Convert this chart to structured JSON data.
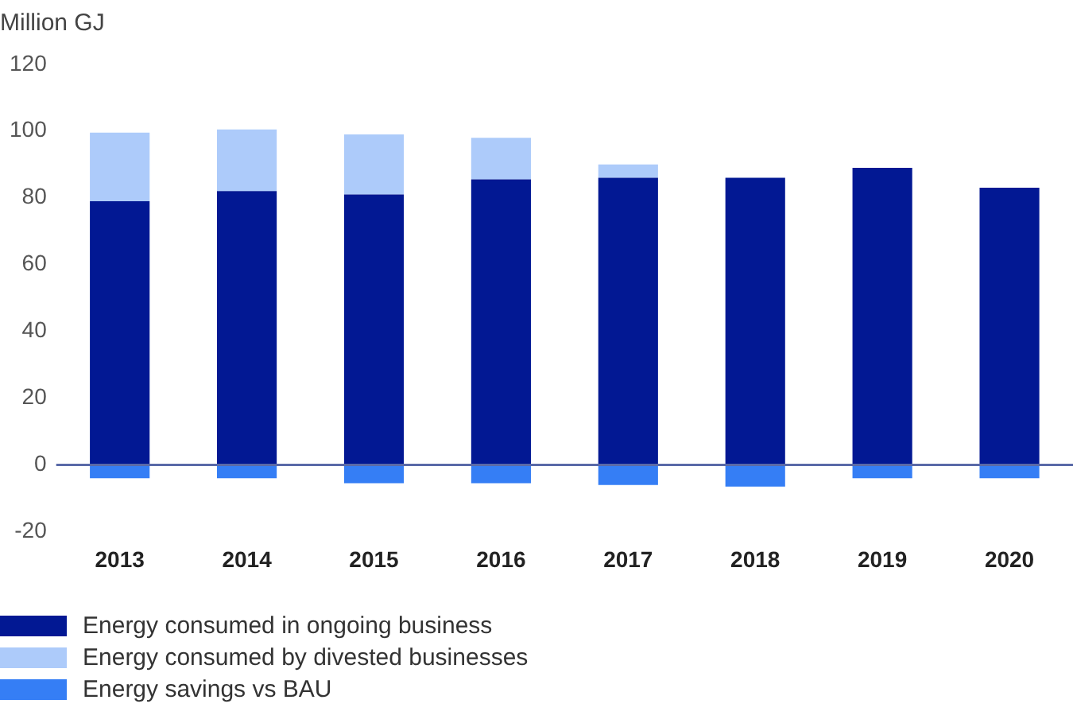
{
  "chart_data": {
    "type": "bar",
    "ylabel": "Million GJ",
    "categories": [
      "2013",
      "2014",
      "2015",
      "2016",
      "2017",
      "2018",
      "2019",
      "2020"
    ],
    "stacked": true,
    "series": [
      {
        "name": "Energy consumed in ongoing business",
        "color": "#021893",
        "values": [
          79,
          82,
          81,
          85.5,
          86,
          86,
          89,
          83
        ]
      },
      {
        "name": "Energy consumed by divested businesses",
        "color": "#adcbfa",
        "values": [
          20.5,
          18.5,
          18,
          12.5,
          4,
          0,
          0,
          0
        ]
      },
      {
        "name": "Energy savings vs BAU",
        "color": "#357ef5",
        "values": [
          -4,
          -4,
          -5.5,
          -5.5,
          -6,
          -6.5,
          -4,
          -4
        ]
      }
    ],
    "ylim": [
      -20,
      120
    ],
    "yticks": [
      -20,
      0,
      20,
      40,
      60,
      80,
      100,
      120
    ],
    "ref_lines": [
      {
        "axis": "y",
        "value": 0,
        "color": "#5a6aa8"
      }
    ],
    "grid": false,
    "legend": "bottom"
  }
}
